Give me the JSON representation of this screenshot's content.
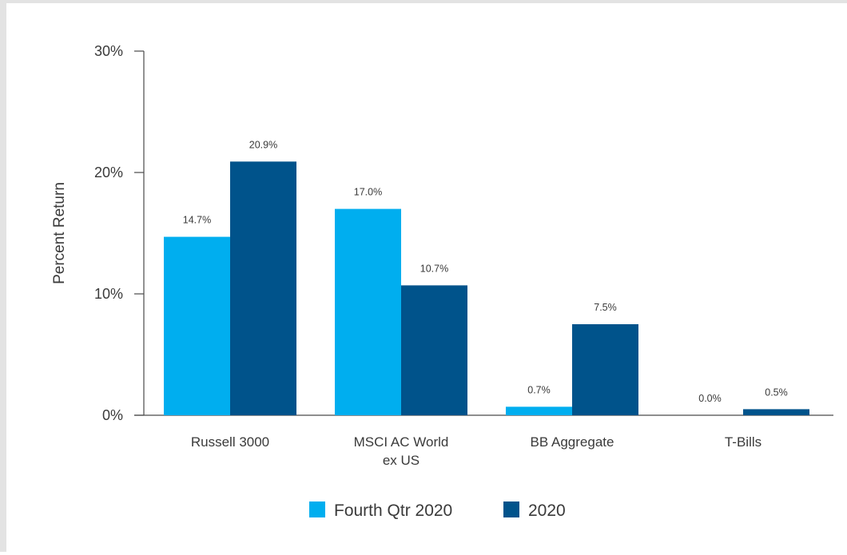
{
  "chart_data": {
    "type": "bar",
    "title": "",
    "xlabel": "",
    "ylabel": "Percent Return",
    "ylim": [
      0,
      30
    ],
    "yticks": [
      0,
      10,
      20,
      30
    ],
    "ytick_labels": [
      "0%",
      "10%",
      "20%",
      "30%"
    ],
    "categories": [
      [
        "Russell 3000"
      ],
      [
        "MSCI AC World",
        "ex US"
      ],
      [
        "BB Aggregate"
      ],
      [
        "T-Bills"
      ]
    ],
    "series": [
      {
        "name": "Fourth Qtr 2020",
        "color": "#00aeef",
        "values": [
          14.7,
          17.0,
          0.7,
          0.0
        ],
        "labels": [
          "14.7%",
          "17.0%",
          "0.7%",
          "0.0%"
        ]
      },
      {
        "name": "2020",
        "color": "#00538b",
        "values": [
          20.9,
          10.7,
          7.5,
          0.5
        ],
        "labels": [
          "20.9%",
          "10.7%",
          "7.5%",
          "0.5%"
        ]
      }
    ],
    "grid": false,
    "legend": "bottom"
  }
}
